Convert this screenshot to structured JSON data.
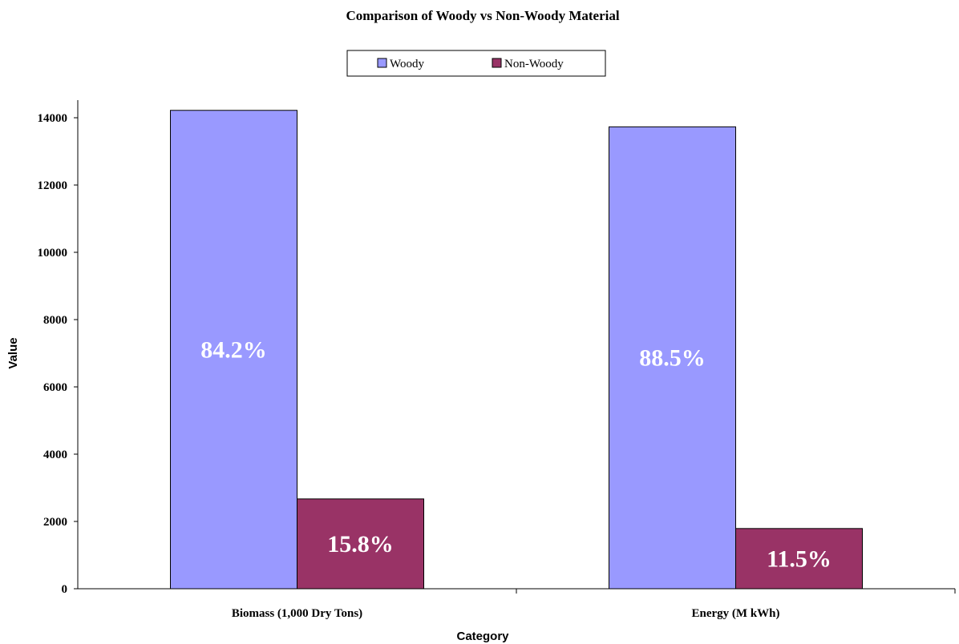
{
  "chart_data": {
    "type": "bar",
    "title": "Comparison of Woody vs Non-Woody Material",
    "xlabel": "Category",
    "ylabel": "Value",
    "categories": [
      "Biomass (1,000 Dry Tons)",
      "Energy (M kWh)"
    ],
    "series": [
      {
        "name": "Woody",
        "values": [
          14220,
          13730
        ],
        "labels": [
          "84.2%",
          "88.5%"
        ],
        "color": "#9999ff"
      },
      {
        "name": "Non-Woody",
        "values": [
          2670,
          1790
        ],
        "labels": [
          "15.8%",
          "11.5%"
        ],
        "color": "#993366"
      }
    ],
    "ylim": [
      0,
      14000
    ],
    "yticks": [
      "0",
      "2000",
      "4000",
      "6000",
      "8000",
      "10000",
      "12000",
      "14000"
    ],
    "grid": false,
    "legend": "top-center"
  }
}
